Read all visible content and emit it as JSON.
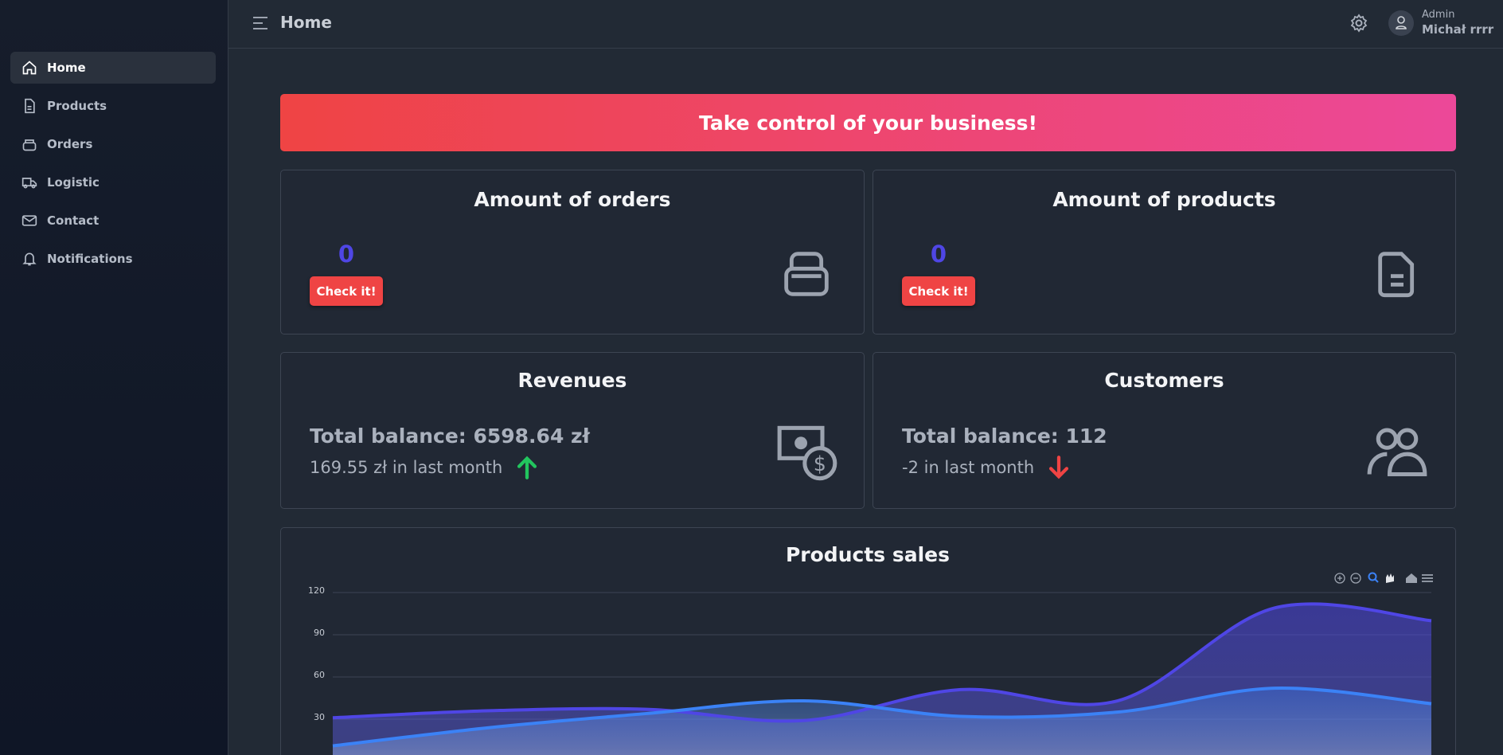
{
  "sidebar": {
    "items": [
      "Home",
      "Products",
      "Orders",
      "Logistic",
      "Contact",
      "Notifications"
    ],
    "active_index": 0
  },
  "header": {
    "title": "Home",
    "user_role": "Admin",
    "user_name": "Michał rrrr"
  },
  "banner": "Take control of your business!",
  "cards": [
    {
      "title": "Amount of orders",
      "value": 0,
      "button": "Check it!"
    },
    {
      "title": "Amount of products",
      "value": 0,
      "button": "Check it!"
    }
  ],
  "revenues": {
    "title": "Revenues",
    "balance": "Total balance: 6598.64 zł",
    "change": "169.55 zł in last month",
    "trend": "up"
  },
  "customers": {
    "title": "Customers",
    "balance": "Total balance: 112",
    "change": "-2 in last month",
    "trend": "down"
  },
  "chart_data": {
    "type": "area",
    "title": "Products sales",
    "ylim": [
      0,
      120
    ],
    "yticks": [
      30,
      60,
      90,
      120
    ],
    "grid": true,
    "series": [
      {
        "color": "#4f46e5",
        "values": [
          31,
          36,
          37,
          29,
          51,
          43,
          109,
          100
        ]
      },
      {
        "color": "#3b82f6",
        "values": [
          11,
          24,
          34,
          43,
          32,
          35,
          52,
          41
        ]
      }
    ]
  }
}
